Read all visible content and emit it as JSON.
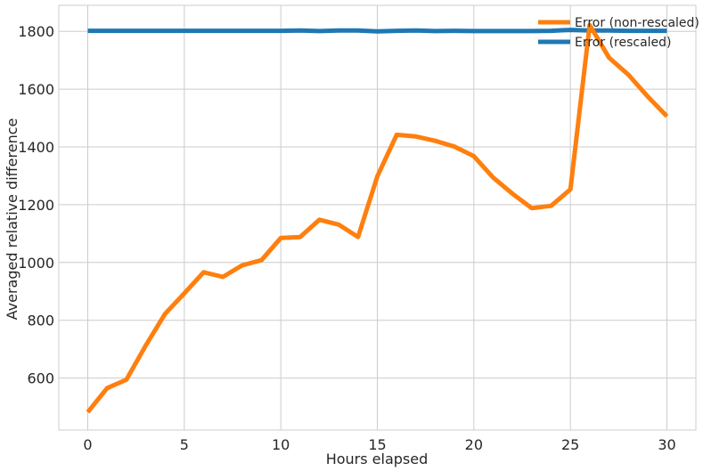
{
  "chart_data": {
    "type": "line",
    "title": "",
    "xlabel": "Hours elapsed",
    "ylabel": "Averaged relative difference",
    "xlim": [
      -1.5,
      31.5
    ],
    "ylim": [
      420,
      1890
    ],
    "xticks": [
      0,
      5,
      10,
      15,
      20,
      25,
      30
    ],
    "yticks": [
      600,
      800,
      1000,
      1200,
      1400,
      1600,
      1800
    ],
    "grid": true,
    "legend_position": "top-right",
    "series": [
      {
        "name": "Error (non-rescaled)",
        "color": "#ff7f0e",
        "x": [
          0,
          1,
          2,
          3,
          4,
          5,
          6,
          7,
          8,
          9,
          10,
          11,
          12,
          13,
          14,
          15,
          16,
          17,
          18,
          19,
          20,
          21,
          22,
          23,
          24,
          25,
          26,
          27,
          28,
          29,
          30
        ],
        "values": [
          482,
          565,
          594,
          712,
          822,
          893,
          966,
          950,
          990,
          1008,
          1085,
          1088,
          1148,
          1131,
          1088,
          1298,
          1442,
          1436,
          1421,
          1401,
          1368,
          1294,
          1238,
          1188,
          1196,
          1253,
          1822,
          1709,
          1650,
          1575,
          1506
        ]
      },
      {
        "name": "Error (rescaled)",
        "color": "#1f77b4",
        "x": [
          0,
          1,
          2,
          3,
          4,
          5,
          6,
          7,
          8,
          9,
          10,
          11,
          12,
          13,
          14,
          15,
          16,
          17,
          18,
          19,
          20,
          21,
          22,
          23,
          24,
          25,
          26,
          27,
          28,
          29,
          30
        ],
        "values": [
          1802,
          1802,
          1802,
          1802,
          1802,
          1802,
          1802,
          1802,
          1802,
          1802,
          1802,
          1803,
          1801,
          1803,
          1803,
          1800,
          1802,
          1803,
          1801,
          1802,
          1801,
          1801,
          1801,
          1801,
          1802,
          1805,
          1803,
          1803,
          1802,
          1802,
          1802
        ]
      }
    ]
  }
}
